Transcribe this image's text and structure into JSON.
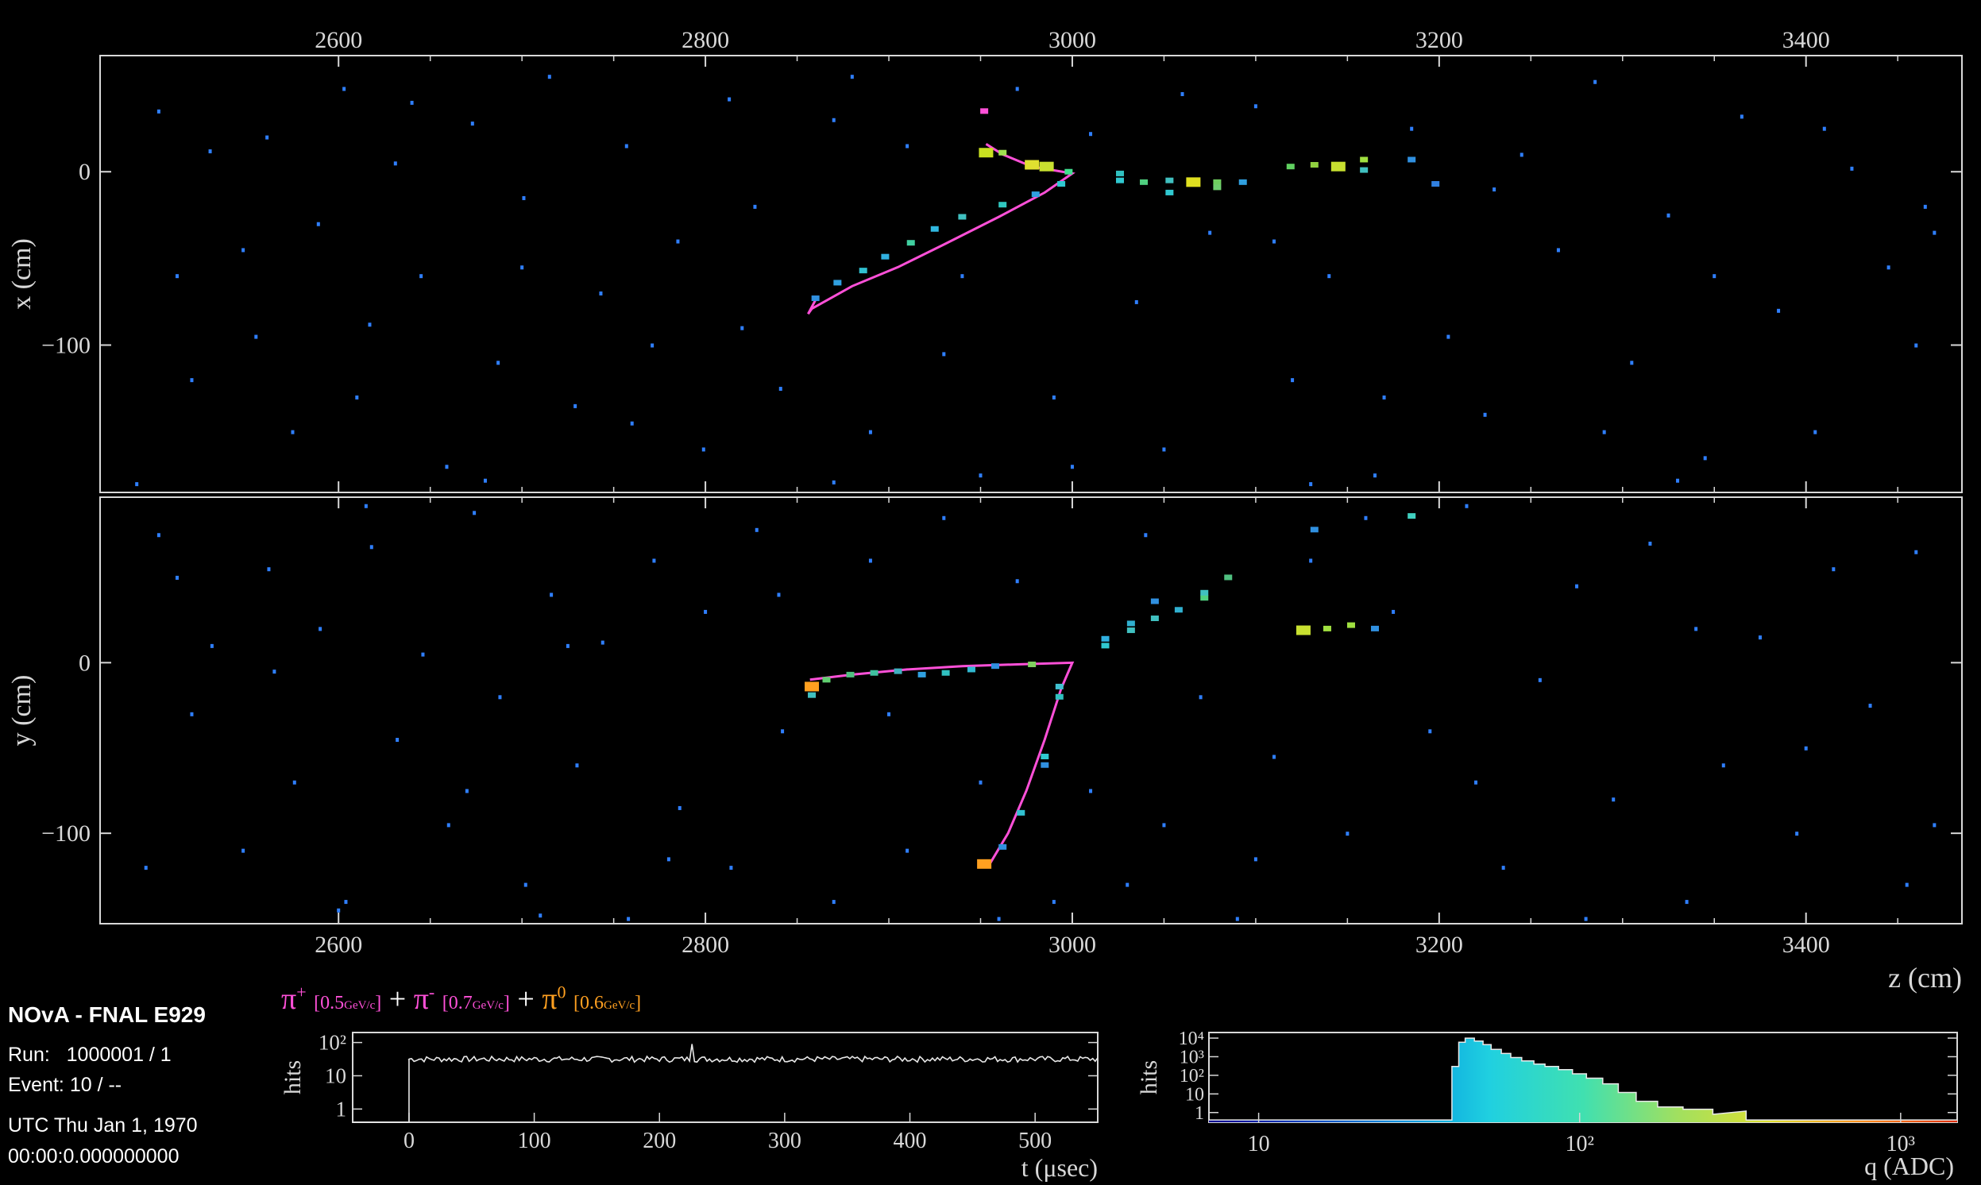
{
  "info": {
    "experiment": "NOvA - FNAL E929",
    "run": "Run:   1000001 / 1",
    "event": "Event: 10 / --",
    "date": "UTC Thu Jan 1, 1970",
    "time": "00:00:0.000000000"
  },
  "legend": {
    "pi_plus": "π",
    "pi_plus_sup": "+",
    "pi_plus_energy": "[0.5",
    "pi_plus_unit": "GeV/c",
    "pi_minus": "π",
    "pi_minus_sup": "-",
    "pi_minus_energy": "[0.7",
    "pi_minus_unit": "GeV/c",
    "pi_zero": "π",
    "pi_zero_sup": "0",
    "pi_zero_energy": "[0.6",
    "pi_zero_unit": "GeV/c",
    "plus": "+",
    "close": "]"
  },
  "colors": {
    "background": "#000000",
    "frame": "#d8d8d8",
    "track": "#ff50d8",
    "pi_zero": "#ffa020",
    "noise_hit": "#2f7fff"
  },
  "chart_data": [
    {
      "id": "xz-view",
      "type": "scatter",
      "xlabel": "",
      "ylabel": "x (cm)",
      "xlim": [
        2470,
        3485
      ],
      "ylim": [
        -185,
        67
      ],
      "xticks": [
        2600,
        2800,
        3000,
        3200,
        3400
      ],
      "yticks": [
        0,
        -100
      ],
      "track_points": [
        [
          [
            2856,
            -82
          ],
          [
            2858,
            -79
          ],
          [
            2880,
            -66
          ],
          [
            2905,
            -55
          ],
          [
            2930,
            -42
          ],
          [
            2960,
            -26
          ],
          [
            2985,
            -12
          ],
          [
            3000,
            -1
          ],
          [
            2978,
            3
          ],
          [
            2962,
            10
          ],
          [
            2953,
            16
          ]
        ],
        [
          [
            2856,
            -82
          ],
          [
            2860,
            -74
          ]
        ]
      ],
      "hits": [
        [
          2953,
          11,
          "#c8e020"
        ],
        [
          2962,
          11,
          "#a0e050"
        ],
        [
          2978,
          4,
          "#e0e030"
        ],
        [
          2986,
          3,
          "#c8e030"
        ],
        [
          2998,
          0,
          "#40e090"
        ],
        [
          2994,
          -7,
          "#30c8d0"
        ],
        [
          2980,
          -13,
          "#30a0e0"
        ],
        [
          2962,
          -19,
          "#30c8c0"
        ],
        [
          2940,
          -26,
          "#40c0c0"
        ],
        [
          2925,
          -33,
          "#30b8e0"
        ],
        [
          2912,
          -41,
          "#40d0a0"
        ],
        [
          2898,
          -49,
          "#30b0e0"
        ],
        [
          2886,
          -57,
          "#30c0d0"
        ],
        [
          2872,
          -64,
          "#30a0e0"
        ],
        [
          2860,
          -73,
          "#3090e0"
        ],
        [
          3026,
          -1,
          "#30c0c0"
        ],
        [
          3026,
          -5,
          "#30c8d0"
        ],
        [
          3039,
          -6,
          "#50d080"
        ],
        [
          3053,
          -5,
          "#40c0c0"
        ],
        [
          3053,
          -12,
          "#30c8d0"
        ],
        [
          3066,
          -6,
          "#e0e020"
        ],
        [
          3079,
          -6,
          "#70d060"
        ],
        [
          3079,
          -9,
          "#70d070"
        ],
        [
          3093,
          -6,
          "#30a0e0"
        ],
        [
          3119,
          3,
          "#60d060"
        ],
        [
          3132,
          4,
          "#90d040"
        ],
        [
          3145,
          3,
          "#c8e030"
        ],
        [
          3159,
          7,
          "#a0e040"
        ],
        [
          3159,
          1,
          "#40c0c0"
        ],
        [
          3185,
          7,
          "#3090e0"
        ],
        [
          3198,
          -7,
          "#3080e0"
        ],
        [
          2952,
          35,
          "#ff50d8"
        ]
      ],
      "noise_hits": [
        [
          2502,
          35
        ],
        [
          2520,
          -120
        ],
        [
          2530,
          12
        ],
        [
          2548,
          -45
        ],
        [
          2561,
          20
        ],
        [
          2575,
          -150
        ],
        [
          2589,
          -30
        ],
        [
          2603,
          48
        ],
        [
          2617,
          -88
        ],
        [
          2631,
          5
        ],
        [
          2645,
          -60
        ],
        [
          2659,
          -170
        ],
        [
          2673,
          28
        ],
        [
          2687,
          -110
        ],
        [
          2701,
          -15
        ],
        [
          2715,
          55
        ],
        [
          2729,
          -135
        ],
        [
          2743,
          -70
        ],
        [
          2757,
          15
        ],
        [
          2771,
          -100
        ],
        [
          2785,
          -40
        ],
        [
          2799,
          -160
        ],
        [
          2813,
          42
        ],
        [
          2827,
          -20
        ],
        [
          2841,
          -125
        ],
        [
          2870,
          30
        ],
        [
          2890,
          -150
        ],
        [
          2910,
          15
        ],
        [
          2930,
          -105
        ],
        [
          2950,
          -175
        ],
        [
          2970,
          48
        ],
        [
          2990,
          -130
        ],
        [
          3010,
          22
        ],
        [
          3035,
          -75
        ],
        [
          3050,
          -160
        ],
        [
          3075,
          -35
        ],
        [
          3100,
          38
        ],
        [
          3120,
          -120
        ],
        [
          3140,
          -60
        ],
        [
          3165,
          -175
        ],
        [
          3185,
          25
        ],
        [
          3205,
          -95
        ],
        [
          3225,
          -140
        ],
        [
          3245,
          10
        ],
        [
          3265,
          -45
        ],
        [
          3285,
          52
        ],
        [
          3305,
          -110
        ],
        [
          3325,
          -25
        ],
        [
          3345,
          -165
        ],
        [
          3365,
          32
        ],
        [
          3385,
          -80
        ],
        [
          3405,
          -150
        ],
        [
          3425,
          2
        ],
        [
          3445,
          -55
        ],
        [
          3465,
          -20
        ],
        [
          3470,
          -35
        ],
        [
          2512,
          -60
        ],
        [
          2555,
          -95
        ],
        [
          2610,
          -130
        ],
        [
          2640,
          40
        ],
        [
          2700,
          -55
        ],
        [
          2760,
          -145
        ],
        [
          2820,
          -90
        ],
        [
          2880,
          55
        ],
        [
          2940,
          -60
        ],
        [
          3000,
          -170
        ],
        [
          3060,
          45
        ],
        [
          3110,
          -40
        ],
        [
          3170,
          -130
        ],
        [
          3230,
          -10
        ],
        [
          3290,
          -150
        ],
        [
          3350,
          -60
        ],
        [
          3410,
          25
        ],
        [
          3460,
          -100
        ],
        [
          2490,
          -180
        ],
        [
          2680,
          -178
        ],
        [
          2870,
          -179
        ],
        [
          3130,
          -180
        ],
        [
          3330,
          -178
        ]
      ]
    },
    {
      "id": "yz-view",
      "type": "scatter",
      "xlabel": "z (cm)",
      "ylabel": "y (cm)",
      "xlim": [
        2470,
        3485
      ],
      "ylim": [
        -153,
        97
      ],
      "xticks": [
        2600,
        2800,
        3000,
        3200,
        3400
      ],
      "yticks": [
        0,
        -100
      ],
      "track_points": [
        [
          [
            2857,
            -10
          ],
          [
            2880,
            -7
          ],
          [
            2910,
            -4
          ],
          [
            2940,
            -2
          ],
          [
            2970,
            -1
          ],
          [
            3000,
            0
          ],
          [
            2994,
            -15
          ],
          [
            2985,
            -45
          ],
          [
            2975,
            -75
          ],
          [
            2965,
            -100
          ],
          [
            2955,
            -118
          ]
        ]
      ],
      "hits": [
        [
          2858,
          -14,
          "#ffa020"
        ],
        [
          2858,
          -19,
          "#40c0c0"
        ],
        [
          2866,
          -10,
          "#60d070"
        ],
        [
          2879,
          -7,
          "#50c080"
        ],
        [
          2892,
          -6,
          "#40c0a0"
        ],
        [
          2905,
          -5,
          "#40b0c0"
        ],
        [
          2918,
          -7,
          "#30a0e0"
        ],
        [
          2931,
          -6,
          "#30c0c0"
        ],
        [
          2945,
          -4,
          "#30b8d0"
        ],
        [
          2958,
          -2,
          "#3090e0"
        ],
        [
          2978,
          -1,
          "#80d060"
        ],
        [
          2993,
          -14,
          "#40c0d0"
        ],
        [
          2993,
          -20,
          "#30c0c0"
        ],
        [
          2985,
          -55,
          "#30c8d0"
        ],
        [
          2985,
          -60,
          "#3090e0"
        ],
        [
          2972,
          -88,
          "#30c0d0"
        ],
        [
          2962,
          -108,
          "#3090e0"
        ],
        [
          2952,
          -118,
          "#ffa020"
        ],
        [
          3018,
          10,
          "#30c8d0"
        ],
        [
          3018,
          14,
          "#30b0e0"
        ],
        [
          3032,
          19,
          "#40c0c0"
        ],
        [
          3032,
          23,
          "#30b0d0"
        ],
        [
          3045,
          26,
          "#40c0c0"
        ],
        [
          3045,
          36,
          "#3090e0"
        ],
        [
          3058,
          31,
          "#30b0d0"
        ],
        [
          3072,
          38,
          "#50d080"
        ],
        [
          3072,
          41,
          "#40c0c0"
        ],
        [
          3085,
          50,
          "#50c080"
        ],
        [
          3126,
          19,
          "#c8e030"
        ],
        [
          3139,
          20,
          "#a0e040"
        ],
        [
          3152,
          22,
          "#a0e040"
        ],
        [
          3165,
          20,
          "#3090e0"
        ],
        [
          3185,
          86,
          "#40d0c0"
        ],
        [
          3132,
          78,
          "#3090e0"
        ]
      ],
      "noise_hits": [
        [
          2502,
          75
        ],
        [
          2520,
          -30
        ],
        [
          2531,
          10
        ],
        [
          2548,
          -110
        ],
        [
          2562,
          55
        ],
        [
          2576,
          -70
        ],
        [
          2590,
          20
        ],
        [
          2604,
          -140
        ],
        [
          2618,
          68
        ],
        [
          2632,
          -45
        ],
        [
          2646,
          5
        ],
        [
          2660,
          -95
        ],
        [
          2674,
          88
        ],
        [
          2688,
          -20
        ],
        [
          2702,
          -130
        ],
        [
          2716,
          40
        ],
        [
          2730,
          -60
        ],
        [
          2744,
          12
        ],
        [
          2758,
          -150
        ],
        [
          2772,
          60
        ],
        [
          2786,
          -85
        ],
        [
          2800,
          30
        ],
        [
          2814,
          -120
        ],
        [
          2828,
          78
        ],
        [
          2842,
          -40
        ],
        [
          2870,
          -140
        ],
        [
          2890,
          60
        ],
        [
          2910,
          -110
        ],
        [
          2930,
          85
        ],
        [
          2950,
          -70
        ],
        [
          2970,
          48
        ],
        [
          2990,
          -140
        ],
        [
          3010,
          -75
        ],
        [
          3030,
          -130
        ],
        [
          3050,
          -95
        ],
        [
          3070,
          -20
        ],
        [
          3090,
          -150
        ],
        [
          3110,
          -55
        ],
        [
          3130,
          60
        ],
        [
          3150,
          -100
        ],
        [
          3175,
          30
        ],
        [
          3195,
          -40
        ],
        [
          3215,
          92
        ],
        [
          3235,
          -120
        ],
        [
          3255,
          -10
        ],
        [
          3275,
          45
        ],
        [
          3295,
          -80
        ],
        [
          3315,
          70
        ],
        [
          3335,
          -140
        ],
        [
          3355,
          -60
        ],
        [
          3375,
          15
        ],
        [
          3395,
          -100
        ],
        [
          3415,
          55
        ],
        [
          3435,
          -25
        ],
        [
          3455,
          -130
        ],
        [
          3470,
          -95
        ],
        [
          2512,
          50
        ],
        [
          2565,
          -5
        ],
        [
          2615,
          92
        ],
        [
          2670,
          -75
        ],
        [
          2725,
          10
        ],
        [
          2780,
          -115
        ],
        [
          2840,
          40
        ],
        [
          2900,
          -30
        ],
        [
          2960,
          -150
        ],
        [
          3040,
          75
        ],
        [
          3100,
          -115
        ],
        [
          3160,
          85
        ],
        [
          3220,
          -70
        ],
        [
          3280,
          -150
        ],
        [
          3340,
          20
        ],
        [
          3400,
          -50
        ],
        [
          3460,
          65
        ],
        [
          2495,
          -120
        ],
        [
          2600,
          -145
        ],
        [
          2710,
          -148
        ]
      ]
    },
    {
      "id": "time-hist",
      "type": "line",
      "xlabel": "t (μsec)",
      "ylabel": "hits",
      "xlim": [
        -45,
        550
      ],
      "ylim": [
        0.4,
        200
      ],
      "xticks": [
        0,
        100,
        200,
        300,
        400,
        500
      ],
      "yticks_log": [
        1,
        10,
        100
      ],
      "ytick_labels": [
        "1",
        "10",
        "10²"
      ],
      "series": [
        {
          "segments": [
            [
              -45,
              0.4
            ],
            [
              0,
              0.4
            ],
            [
              0,
              32
            ],
            [
              225,
              32
            ],
            [
              225,
              90
            ],
            [
              226,
              32
            ],
            [
              550,
              32
            ]
          ]
        }
      ]
    },
    {
      "id": "charge-hist",
      "type": "area",
      "xlabel": "q (ADC)",
      "ylabel": "hits",
      "xlim": [
        7,
        1500
      ],
      "ylim": [
        0.3,
        20000
      ],
      "xticks_log": [
        10,
        100,
        1000
      ],
      "xtick_labels": [
        "10",
        "10²",
        "10³"
      ],
      "yticks_log": [
        1,
        10,
        100,
        1000,
        10000
      ],
      "ytick_labels": [
        "1",
        "10",
        "10²",
        "10³",
        "10⁴"
      ],
      "bins": [
        [
          7,
          0.4
        ],
        [
          40,
          0.4
        ],
        [
          40,
          300
        ],
        [
          42,
          300
        ],
        [
          42,
          6000
        ],
        [
          44,
          6000
        ],
        [
          44,
          10000
        ],
        [
          47,
          10000
        ],
        [
          47,
          7000
        ],
        [
          50,
          7000
        ],
        [
          50,
          4500
        ],
        [
          53,
          4500
        ],
        [
          53,
          2500
        ],
        [
          57,
          2500
        ],
        [
          57,
          1500
        ],
        [
          61,
          1500
        ],
        [
          61,
          900
        ],
        [
          66,
          900
        ],
        [
          66,
          600
        ],
        [
          72,
          600
        ],
        [
          72,
          400
        ],
        [
          78,
          400
        ],
        [
          78,
          300
        ],
        [
          86,
          300
        ],
        [
          86,
          200
        ],
        [
          95,
          200
        ],
        [
          95,
          120
        ],
        [
          105,
          120
        ],
        [
          105,
          70
        ],
        [
          118,
          70
        ],
        [
          118,
          35
        ],
        [
          132,
          35
        ],
        [
          132,
          12
        ],
        [
          150,
          12
        ],
        [
          150,
          4
        ],
        [
          175,
          4
        ],
        [
          175,
          2
        ],
        [
          210,
          2
        ],
        [
          210,
          1.5
        ],
        [
          260,
          1.5
        ],
        [
          260,
          0.8
        ],
        [
          330,
          1.2
        ],
        [
          330,
          0.4
        ],
        [
          1500,
          0.4
        ]
      ],
      "cmap": [
        "#000090",
        "#0040c0",
        "#0090e0",
        "#20d0e0",
        "#40e0b0",
        "#a0e060",
        "#e0e030",
        "#ff9020",
        "#e03010"
      ]
    }
  ]
}
